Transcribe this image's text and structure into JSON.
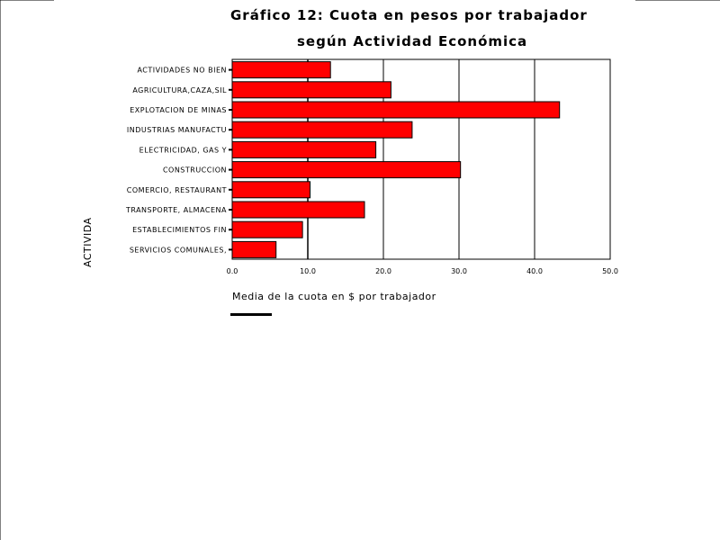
{
  "chart_data": {
    "type": "bar",
    "orientation": "horizontal",
    "title": "Gráfico 12: Cuota en pesos por trabajador",
    "title_line1": "Gráfico 12: Cuota en pesos por trabajador",
    "title_line2": "según Actividad Económica",
    "xlabel": "Media de la cuota en $ por trabajador",
    "ylabel": "ACTIVIDA",
    "xlim": [
      0,
      50
    ],
    "xticks": [
      "0.0",
      "10.0",
      "20.0",
      "30.0",
      "40.0",
      "50.0"
    ],
    "grid": "vertical",
    "categories": [
      "ACTIVIDADES NO BIEN",
      "AGRICULTURA,CAZA,SIL",
      "EXPLOTACION DE MINAS",
      "INDUSTRIAS MANUFACTU",
      "ELECTRICIDAD, GAS Y",
      "CONSTRUCCION",
      "COMERCIO, RESTAURANT",
      "TRANSPORTE, ALMACENA",
      "ESTABLECIMIENTOS FIN",
      "SERVICIOS COMUNALES,"
    ],
    "values": [
      13.0,
      21.0,
      43.3,
      23.8,
      19.0,
      30.2,
      10.3,
      17.5,
      9.3,
      5.8
    ],
    "bar_color": "#ff0000"
  }
}
